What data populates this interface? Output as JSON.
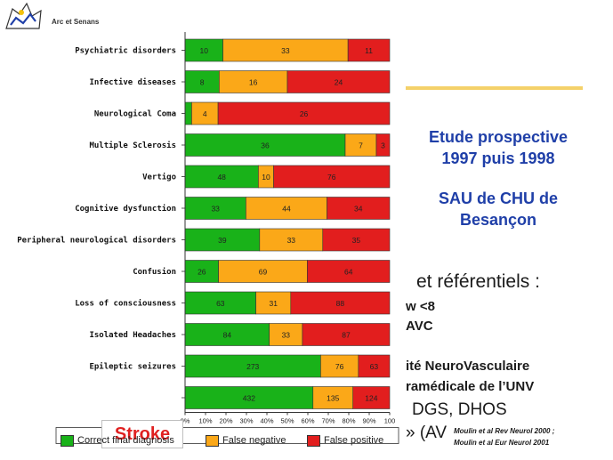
{
  "header": {
    "brand": "Arc et Senans"
  },
  "side_text": {
    "title_line1": "Etude prospective",
    "title_line2": "1997 puis 1998",
    "subtitle_line1": "SAU de CHU de",
    "subtitle_line2": "Besançon",
    "frag1": "et référentiels :",
    "frag2": "w <8",
    "frag3": "AVC",
    "frag4": "ité NeuroVasculaire",
    "frag5": "ramédicale de l’UNV",
    "frag6": "DGS, DHOS",
    "frag7": "» (AV",
    "ref1": "Moulin et al Rev Neurol 2000 ;",
    "ref2": "Moulin et al Eur Neurol 2001"
  },
  "stroke_label": "Stroke",
  "colors": {
    "correct": "#19b219",
    "false_negative": "#fba818",
    "false_positive": "#e21e1e",
    "accent_blue": "#1f3fa8",
    "rule": "#f4d16a"
  },
  "chart_data": {
    "type": "bar",
    "orientation": "horizontal",
    "stacked": "percent",
    "categories": [
      "Psychiatric disorders",
      "Infective diseases",
      "Neurological Coma",
      "Multiple Sclerosis",
      "Vertigo",
      "Cognitive dysfunction",
      "Peripheral neurological disorders",
      "Confusion",
      "Loss of consciousness",
      "Isolated Headaches",
      "Epileptic seizures",
      "Stroke"
    ],
    "series": [
      {
        "name": "Correct final diagnosis",
        "color": "#19b219",
        "values": [
          10,
          8,
          1,
          36,
          48,
          33,
          39,
          26,
          63,
          84,
          273,
          432
        ]
      },
      {
        "name": "False negative",
        "color": "#fba818",
        "values": [
          33,
          16,
          4,
          7,
          10,
          44,
          33,
          69,
          31,
          33,
          76,
          135
        ]
      },
      {
        "name": "False positive",
        "color": "#e21e1e",
        "values": [
          11,
          24,
          26,
          3,
          76,
          34,
          35,
          64,
          88,
          87,
          63,
          124
        ]
      }
    ],
    "data_labels_shown": [
      [
        true,
        true,
        true
      ],
      [
        true,
        true,
        true
      ],
      [
        false,
        true,
        true
      ],
      [
        true,
        true,
        true
      ],
      [
        true,
        true,
        true
      ],
      [
        true,
        true,
        true
      ],
      [
        true,
        true,
        true
      ],
      [
        true,
        true,
        true
      ],
      [
        true,
        true,
        true
      ],
      [
        true,
        true,
        true
      ],
      [
        true,
        true,
        true
      ],
      [
        true,
        true,
        true
      ]
    ],
    "x_ticks": [
      "0%",
      "10%",
      "20%",
      "30%",
      "40%",
      "50%",
      "60%",
      "70%",
      "80%",
      "90%",
      "100"
    ],
    "xlim": [
      0,
      100
    ],
    "grid": false,
    "legend_position": "bottom",
    "legend": [
      "Correct final diagnosis",
      "False negative",
      "False positive"
    ]
  }
}
